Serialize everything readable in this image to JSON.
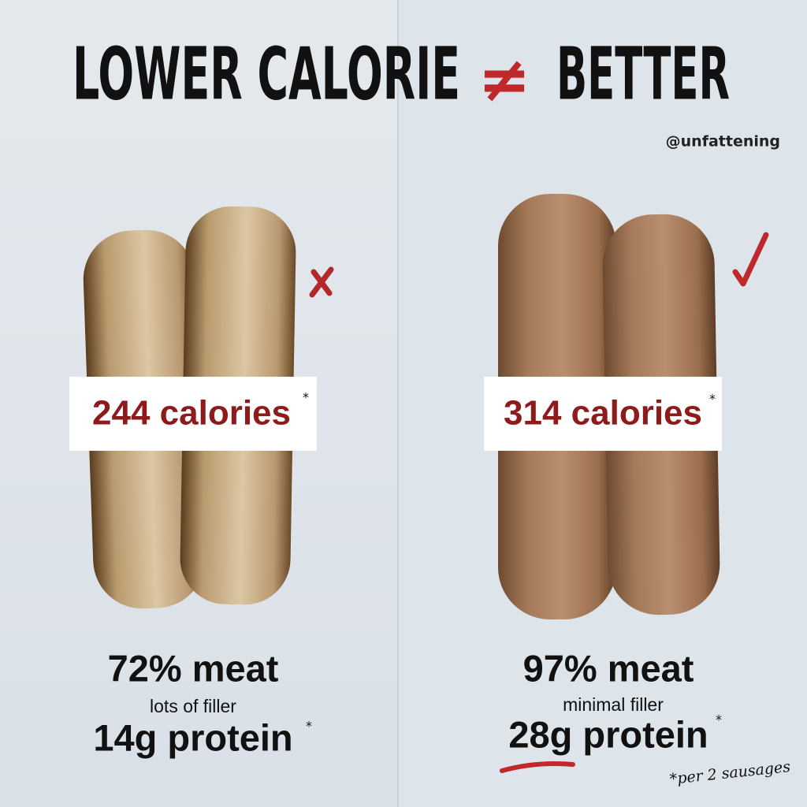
{
  "header": {
    "title_left": "LOWER CALORIE",
    "symbol": "≠",
    "title_right": "BETTER",
    "handle": "@unfattening"
  },
  "panels": [
    {
      "calories": "244 calories",
      "meat": "72% meat",
      "filler": "lots of filler",
      "protein": "14g protein"
    },
    {
      "calories": "314 calories",
      "meat": "97% meat",
      "filler": "minimal filler",
      "protein": "28g protein"
    }
  ],
  "footnote_mark": "*",
  "footnote": "*per 2 sausages"
}
